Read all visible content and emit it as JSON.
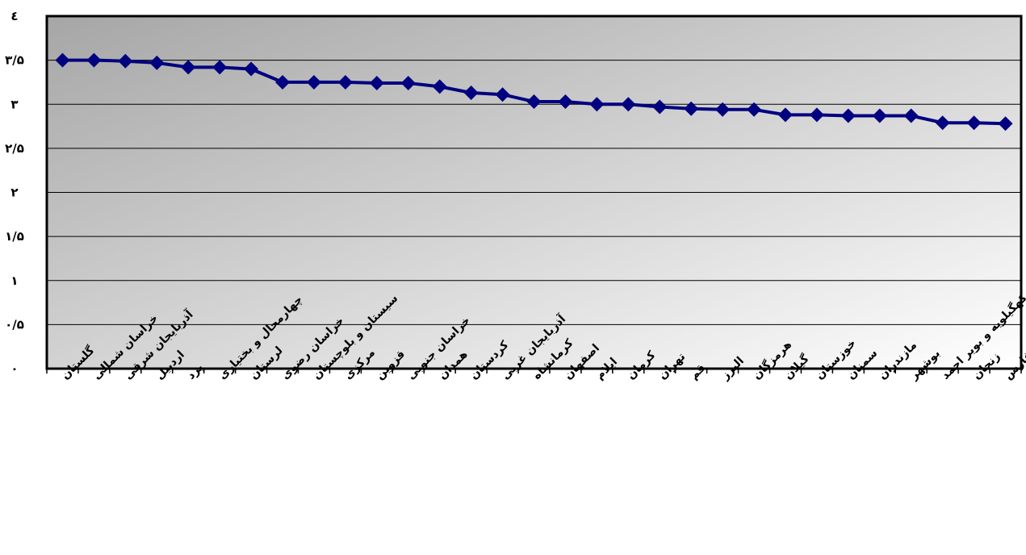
{
  "chart_data": {
    "type": "line",
    "title": "",
    "xlabel": "",
    "ylabel": "",
    "ylim": [
      0,
      4
    ],
    "yticks": [
      0,
      0.5,
      1,
      1.5,
      2,
      2.5,
      3,
      3.5,
      4
    ],
    "ytick_labels": [
      "۰",
      "۰/۵",
      "۱",
      "۱/۵",
      "۲",
      "۲/۵",
      "۳",
      "۳/۵",
      "٤"
    ],
    "grid": true,
    "legend": "none",
    "categories": [
      "گلستان",
      "خراسان شمالی",
      "آذربایجان شرقی",
      "اردبیل",
      "یزد",
      "چهارمحال و بختیاری",
      "لرستان",
      "خراسان رضوی",
      "سیستان و بلوچستان",
      "مرکزی",
      "قزوین",
      "خراسان جنوبی",
      "همدان",
      "کردستان",
      "آذربایجان غربی",
      "کرمانشاه",
      "اصفهان",
      "ایلام",
      "کرمان",
      "تهران",
      "قم",
      "البرز",
      "هرمزگان",
      "گیلان",
      "خوزستان",
      "سمنان",
      "مازندران",
      "بوشهر",
      "کهگیلویه و بویر احمد",
      "زنجان",
      "فارس"
    ],
    "series": [
      {
        "values": [
          3.5,
          3.5,
          3.49,
          3.47,
          3.42,
          3.42,
          3.4,
          3.25,
          3.25,
          3.25,
          3.24,
          3.24,
          3.2,
          3.13,
          3.11,
          3.03,
          3.03,
          3.0,
          3.0,
          2.97,
          2.95,
          2.94,
          2.94,
          2.88,
          2.88,
          2.87,
          2.87,
          2.87,
          2.79,
          2.79,
          2.78
        ]
      }
    ],
    "colors": {
      "line": "#000080",
      "marker": "#000080",
      "grid": "#000000",
      "border": "#000000",
      "plot_gradient_start": "#a6a6a6",
      "plot_gradient_end": "#ffffff"
    }
  }
}
